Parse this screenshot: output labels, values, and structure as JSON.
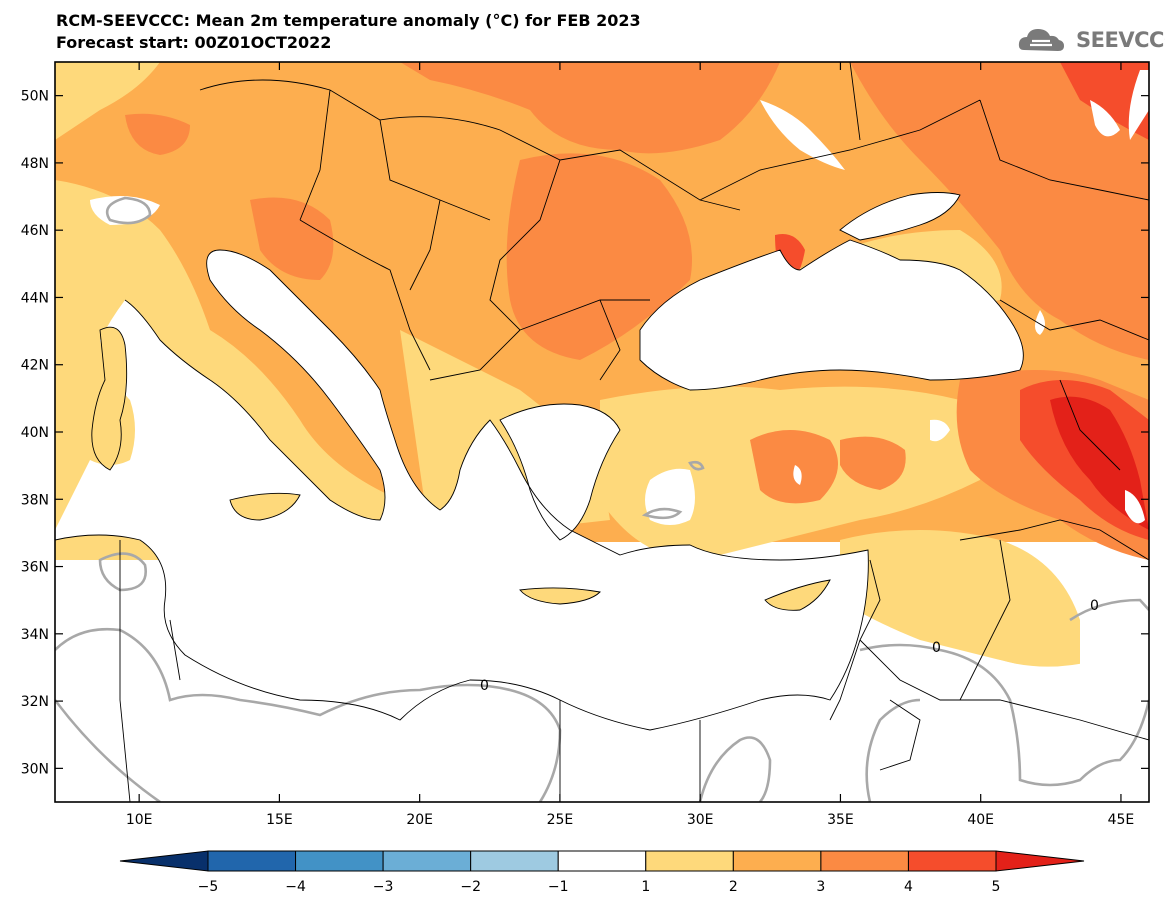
{
  "header": {
    "title": "RCM-SEEVCCC: Mean 2m temperature anomaly (°C) for FEB 2023",
    "subtitle": "Forecast start: 00Z01OCT2022",
    "logo_text": "SEEVCCC",
    "logo_icon": "cloud-icon"
  },
  "map": {
    "lon_range": [
      7,
      46
    ],
    "lat_range": [
      29,
      51
    ],
    "lon_ticks": [
      {
        "value": 10,
        "label": "10E"
      },
      {
        "value": 15,
        "label": "15E"
      },
      {
        "value": 20,
        "label": "20E"
      },
      {
        "value": 25,
        "label": "25E"
      },
      {
        "value": 30,
        "label": "30E"
      },
      {
        "value": 35,
        "label": "35E"
      },
      {
        "value": 40,
        "label": "40E"
      },
      {
        "value": 45,
        "label": "45E"
      }
    ],
    "lat_ticks": [
      {
        "value": 30,
        "label": "30N"
      },
      {
        "value": 32,
        "label": "32N"
      },
      {
        "value": 34,
        "label": "34N"
      },
      {
        "value": 36,
        "label": "36N"
      },
      {
        "value": 38,
        "label": "38N"
      },
      {
        "value": 40,
        "label": "40N"
      },
      {
        "value": 42,
        "label": "42N"
      },
      {
        "value": 44,
        "label": "44N"
      },
      {
        "value": 46,
        "label": "46N"
      },
      {
        "value": 48,
        "label": "48N"
      },
      {
        "value": 50,
        "label": "50N"
      }
    ],
    "contour_label": "0",
    "colors": {
      "a_gt5": "#e32119",
      "a_4_5": "#f54d2c",
      "a_3_4": "#fb8a43",
      "a_2_3": "#fdae4f",
      "a_1_2": "#fed97b",
      "a_n1_1": "#ffffff",
      "a_n2_n1": "#9ecae1",
      "a_n3_n2": "#6baed6",
      "a_n4_n3": "#4292c6",
      "a_n5_n4": "#2166ac",
      "a_lt_n5": "#08306b",
      "sea": "#ffffff",
      "zero_contour": "#a8a8a8",
      "border": "#000000"
    }
  },
  "colorbar": {
    "labels": [
      "−5",
      "−4",
      "−3",
      "−2",
      "−1",
      "1",
      "2",
      "3",
      "4",
      "5"
    ],
    "colors": [
      "#08306b",
      "#2166ac",
      "#4292c6",
      "#6baed6",
      "#9ecae1",
      "#ffffff",
      "#fed97b",
      "#fdae4f",
      "#fb8a43",
      "#f54d2c",
      "#e32119"
    ]
  }
}
